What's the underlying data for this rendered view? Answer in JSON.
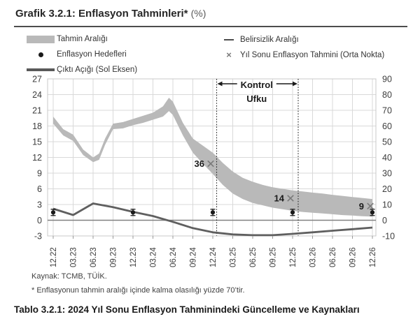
{
  "title": {
    "text": "Grafik 3.2.1: Enflasyon Tahminleri*",
    "unit": "(%)"
  },
  "legend": {
    "left": [
      {
        "marker": "band",
        "label": "Tahmin Aralığı"
      },
      {
        "marker": "dot",
        "label": "Enflasyon Hedefleri"
      },
      {
        "marker": "line",
        "label": "Çıktı Açığı (Sol Eksen)"
      }
    ],
    "right": [
      {
        "marker": "dash",
        "label": "Belirsizlik Aralığı"
      },
      {
        "marker": "x",
        "label": "Yıl Sonu Enflasyon Tahmini (Orta Nokta)"
      }
    ]
  },
  "chart_data": {
    "type": "area",
    "categories": [
      "12.22",
      "03.23",
      "06.23",
      "09.23",
      "12.23",
      "03.24",
      "06.24",
      "09.24",
      "12.24",
      "03.25",
      "06.25",
      "09.25",
      "12.25",
      "03.26",
      "06.26",
      "09.26",
      "12.26"
    ],
    "left_axis": {
      "ticks": [
        27,
        24,
        21,
        18,
        15,
        12,
        9,
        6,
        3,
        0,
        -3
      ],
      "range": [
        -3,
        27
      ]
    },
    "right_axis": {
      "ticks": [
        90,
        80,
        70,
        60,
        50,
        40,
        30,
        20,
        10,
        0,
        -10
      ],
      "range": [
        -10,
        90
      ]
    },
    "grid": true,
    "series": [
      {
        "name": "Tahmin Aralığı",
        "type": "band",
        "axis": "right",
        "x": [
          0,
          0.5,
          1,
          1.5,
          2,
          2.3,
          2.6,
          3,
          3.5,
          4,
          4.5,
          5,
          5.5,
          5.8,
          6,
          6.5,
          7,
          7.5,
          8,
          8.5,
          9,
          9.5,
          10,
          10.5,
          11,
          11.5,
          12,
          12.5,
          13,
          13.5,
          14,
          14.5,
          15,
          15.5,
          16
        ],
        "top": [
          66,
          58,
          54.5,
          45,
          40,
          42.5,
          52,
          61.5,
          62.5,
          64.5,
          66.5,
          68.5,
          72.5,
          78,
          75.5,
          62,
          52,
          47.5,
          43,
          36.5,
          31,
          27,
          24.5,
          22.5,
          21,
          20,
          19,
          18.3,
          17.6,
          17,
          16.2,
          15.5,
          14.8,
          14.2,
          13.5
        ],
        "bottom": [
          61.5,
          54,
          50.5,
          41.5,
          37,
          38.5,
          48,
          58,
          58.5,
          60.5,
          62,
          64,
          66,
          69.5,
          67,
          54,
          43,
          36,
          29.5,
          22.5,
          17,
          13.5,
          11,
          9.5,
          8,
          7,
          6,
          5.3,
          4.8,
          4.3,
          3.8,
          3.3,
          3,
          2.6,
          2.3
        ]
      },
      {
        "name": "Çıktı Açığı (Sol Eksen)",
        "type": "line",
        "axis": "left",
        "values": [
          2.2,
          1.0,
          3.2,
          2.5,
          1.6,
          0.8,
          -0.3,
          -1.5,
          -2.3,
          -2.7,
          -2.85,
          -2.85,
          -2.6,
          -2.3,
          -2.0,
          -1.7,
          -1.4
        ]
      },
      {
        "name": "Enflasyon Hedefleri",
        "type": "scatter-errorbar",
        "axis": "right",
        "points": [
          {
            "category": "12.22",
            "value": 5,
            "err": 2
          },
          {
            "category": "12.23",
            "value": 5,
            "err": 2
          },
          {
            "category": "12.24",
            "value": 5,
            "err": 2
          },
          {
            "category": "12.25",
            "value": 5,
            "err": 2
          },
          {
            "category": "12.26",
            "value": 5,
            "err": 2
          }
        ]
      },
      {
        "name": "Yıl Sonu Enflasyon Tahmini (Orta Nokta)",
        "type": "scatter-x",
        "axis": "right",
        "points": [
          {
            "category": "12.24",
            "value": 36,
            "label": "36"
          },
          {
            "category": "12.25",
            "value": 14,
            "label": "14"
          },
          {
            "category": "12.26",
            "value": 9,
            "label": "9"
          }
        ]
      }
    ],
    "annotations": {
      "control_horizon": {
        "label_line1": "Kontrol",
        "label_line2": "Ufku",
        "from_category": "12.24",
        "to_category": "12.25"
      }
    }
  },
  "footer": {
    "source": "Kaynak: TCMB, TÜİK.",
    "note": "* Enflasyonun tahmin aralığı içinde kalma olasılığı yüzde 70’tir."
  },
  "table_title": "Tablo 3.2.1: 2024 Yıl Sonu Enflasyon Tahminindeki Güncelleme ve Kaynakları",
  "colors": {
    "band": "#b9b9b9",
    "output_line": "#5f5f5f",
    "grid": "#d9d9d9",
    "border": "#c8c8c8",
    "zero_line": "#808080",
    "axis_text": "#3d3d3d",
    "x_marker": "#7a7a7a",
    "target_dot": "#1a1a1a",
    "dashed_line": "#262626",
    "annotation_text": "#1a1a1a"
  }
}
